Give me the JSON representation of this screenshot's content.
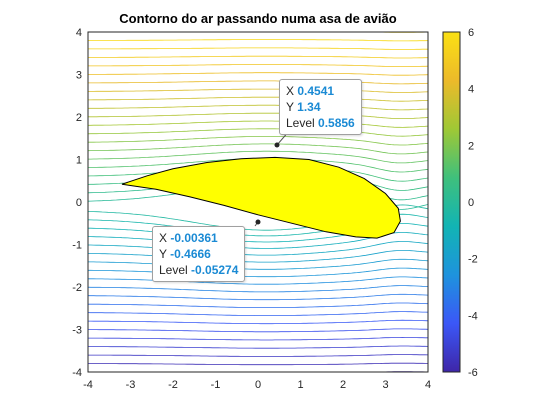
{
  "chart_data": {
    "type": "contour",
    "title": "Contorno do ar passando numa asa de avião",
    "xlim": [
      -4,
      4
    ],
    "ylim": [
      -4,
      4
    ],
    "x_ticks": [
      "-4",
      "-3",
      "-2",
      "-1",
      "0",
      "1",
      "2",
      "3",
      "4"
    ],
    "y_ticks": [
      "4",
      "3",
      "2",
      "1",
      "0",
      "-1",
      "-2",
      "-3",
      "-4"
    ],
    "colorbar": {
      "limits": [
        -6,
        6
      ],
      "ticks": [
        "6",
        "4",
        "2",
        "0",
        "-2",
        "-4",
        "-6"
      ],
      "colormap": "parula",
      "colormap_stops": [
        "#3e26a8",
        "#3b57f7",
        "#1e93dd",
        "#12b4b4",
        "#3fc07c",
        "#9fc835",
        "#ecba2a",
        "#fbe014"
      ]
    },
    "airfoil": {
      "fill_color": "#ffff00",
      "outline": [
        [
          -3.2,
          0.42
        ],
        [
          -2.6,
          0.62
        ],
        [
          -2.0,
          0.78
        ],
        [
          -1.2,
          0.93
        ],
        [
          -0.4,
          1.02
        ],
        [
          0.4,
          1.05
        ],
        [
          1.2,
          1.0
        ],
        [
          1.9,
          0.82
        ],
        [
          2.5,
          0.55
        ],
        [
          3.0,
          0.2
        ],
        [
          3.3,
          -0.15
        ],
        [
          3.35,
          -0.45
        ],
        [
          3.2,
          -0.72
        ],
        [
          2.8,
          -0.85
        ],
        [
          2.3,
          -0.82
        ],
        [
          1.6,
          -0.7
        ],
        [
          0.8,
          -0.5
        ],
        [
          0.0,
          -0.3
        ],
        [
          -0.8,
          -0.08
        ],
        [
          -1.6,
          0.12
        ],
        [
          -2.4,
          0.3
        ],
        [
          -3.2,
          0.42
        ]
      ]
    },
    "datatips": [
      {
        "x_label": "X",
        "x": "0.4541",
        "y_label": "Y",
        "y": "1.34",
        "level_label": "Level",
        "level": "0.5856"
      },
      {
        "x_label": "X",
        "x": "-0.00361",
        "y_label": "Y",
        "y": "-0.4666",
        "level_label": "Level",
        "level": "-0.05274"
      }
    ]
  }
}
